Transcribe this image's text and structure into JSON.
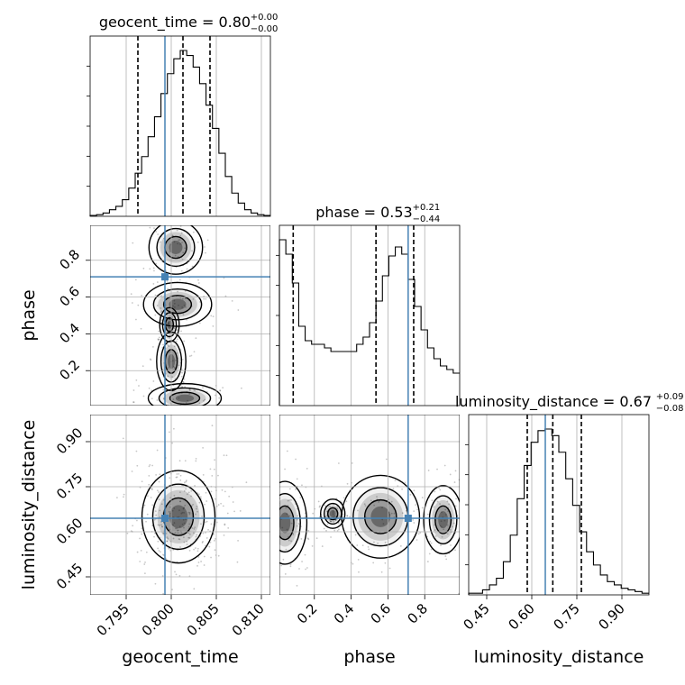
{
  "chart_data": {
    "type": "corner",
    "parameters": [
      "geocent_time",
      "phase",
      "luminosity_distance"
    ],
    "axis_labels": [
      "geocent_time",
      "phase",
      "luminosity_distance"
    ],
    "ranges": {
      "geocent_time": [
        0.791,
        0.811
      ],
      "phase": [
        0.01,
        0.99
      ],
      "luminosity_distance": [
        0.39,
        0.99
      ]
    },
    "ticks": {
      "geocent_time": [
        "0.795",
        "0.800",
        "0.805",
        "0.810"
      ],
      "phase": [
        "0.2",
        "0.4",
        "0.6",
        "0.8"
      ],
      "luminosity_distance": [
        "0.45",
        "0.60",
        "0.75",
        "0.90"
      ]
    },
    "truths": {
      "geocent_time": 0.7993,
      "phase": 0.71,
      "luminosity_distance": 0.645
    },
    "truth_color": "#4682b4",
    "titles": [
      {
        "param": "geocent_time",
        "text": "geocent_time = 0.80",
        "plus": "+0.00",
        "minus": "−0.00",
        "quantiles": [
          0.7963,
          0.8013,
          0.8043
        ]
      },
      {
        "param": "phase",
        "text": "phase = 0.53",
        "plus": "+0.21",
        "minus": "−0.44",
        "quantiles": [
          0.085,
          0.535,
          0.74
        ]
      },
      {
        "param": "luminosity_distance",
        "text": "luminosity_distance = 0.67",
        "plus": "+0.09",
        "minus": "−0.08",
        "quantiles": [
          0.585,
          0.67,
          0.765
        ]
      }
    ],
    "histograms": {
      "geocent_time": [
        0.5,
        1,
        2,
        4,
        6,
        10,
        17,
        26,
        36,
        48,
        60,
        74,
        86,
        95,
        100,
        97,
        90,
        80,
        67,
        53,
        38,
        24,
        14,
        8,
        4,
        2,
        1,
        0.5
      ],
      "phase": [
        92,
        84,
        68,
        44,
        36,
        34,
        34,
        32,
        30,
        30,
        30,
        30,
        34,
        38,
        46,
        58,
        72,
        83,
        88,
        84,
        70,
        55,
        42,
        32,
        26,
        22,
        20,
        18
      ],
      "luminosity_distance": [
        1,
        1,
        3,
        6,
        10,
        20,
        36,
        58,
        78,
        92,
        99,
        100,
        96,
        86,
        70,
        54,
        38,
        26,
        18,
        12,
        8,
        6,
        4,
        3,
        2,
        1
      ]
    },
    "grid": true
  }
}
